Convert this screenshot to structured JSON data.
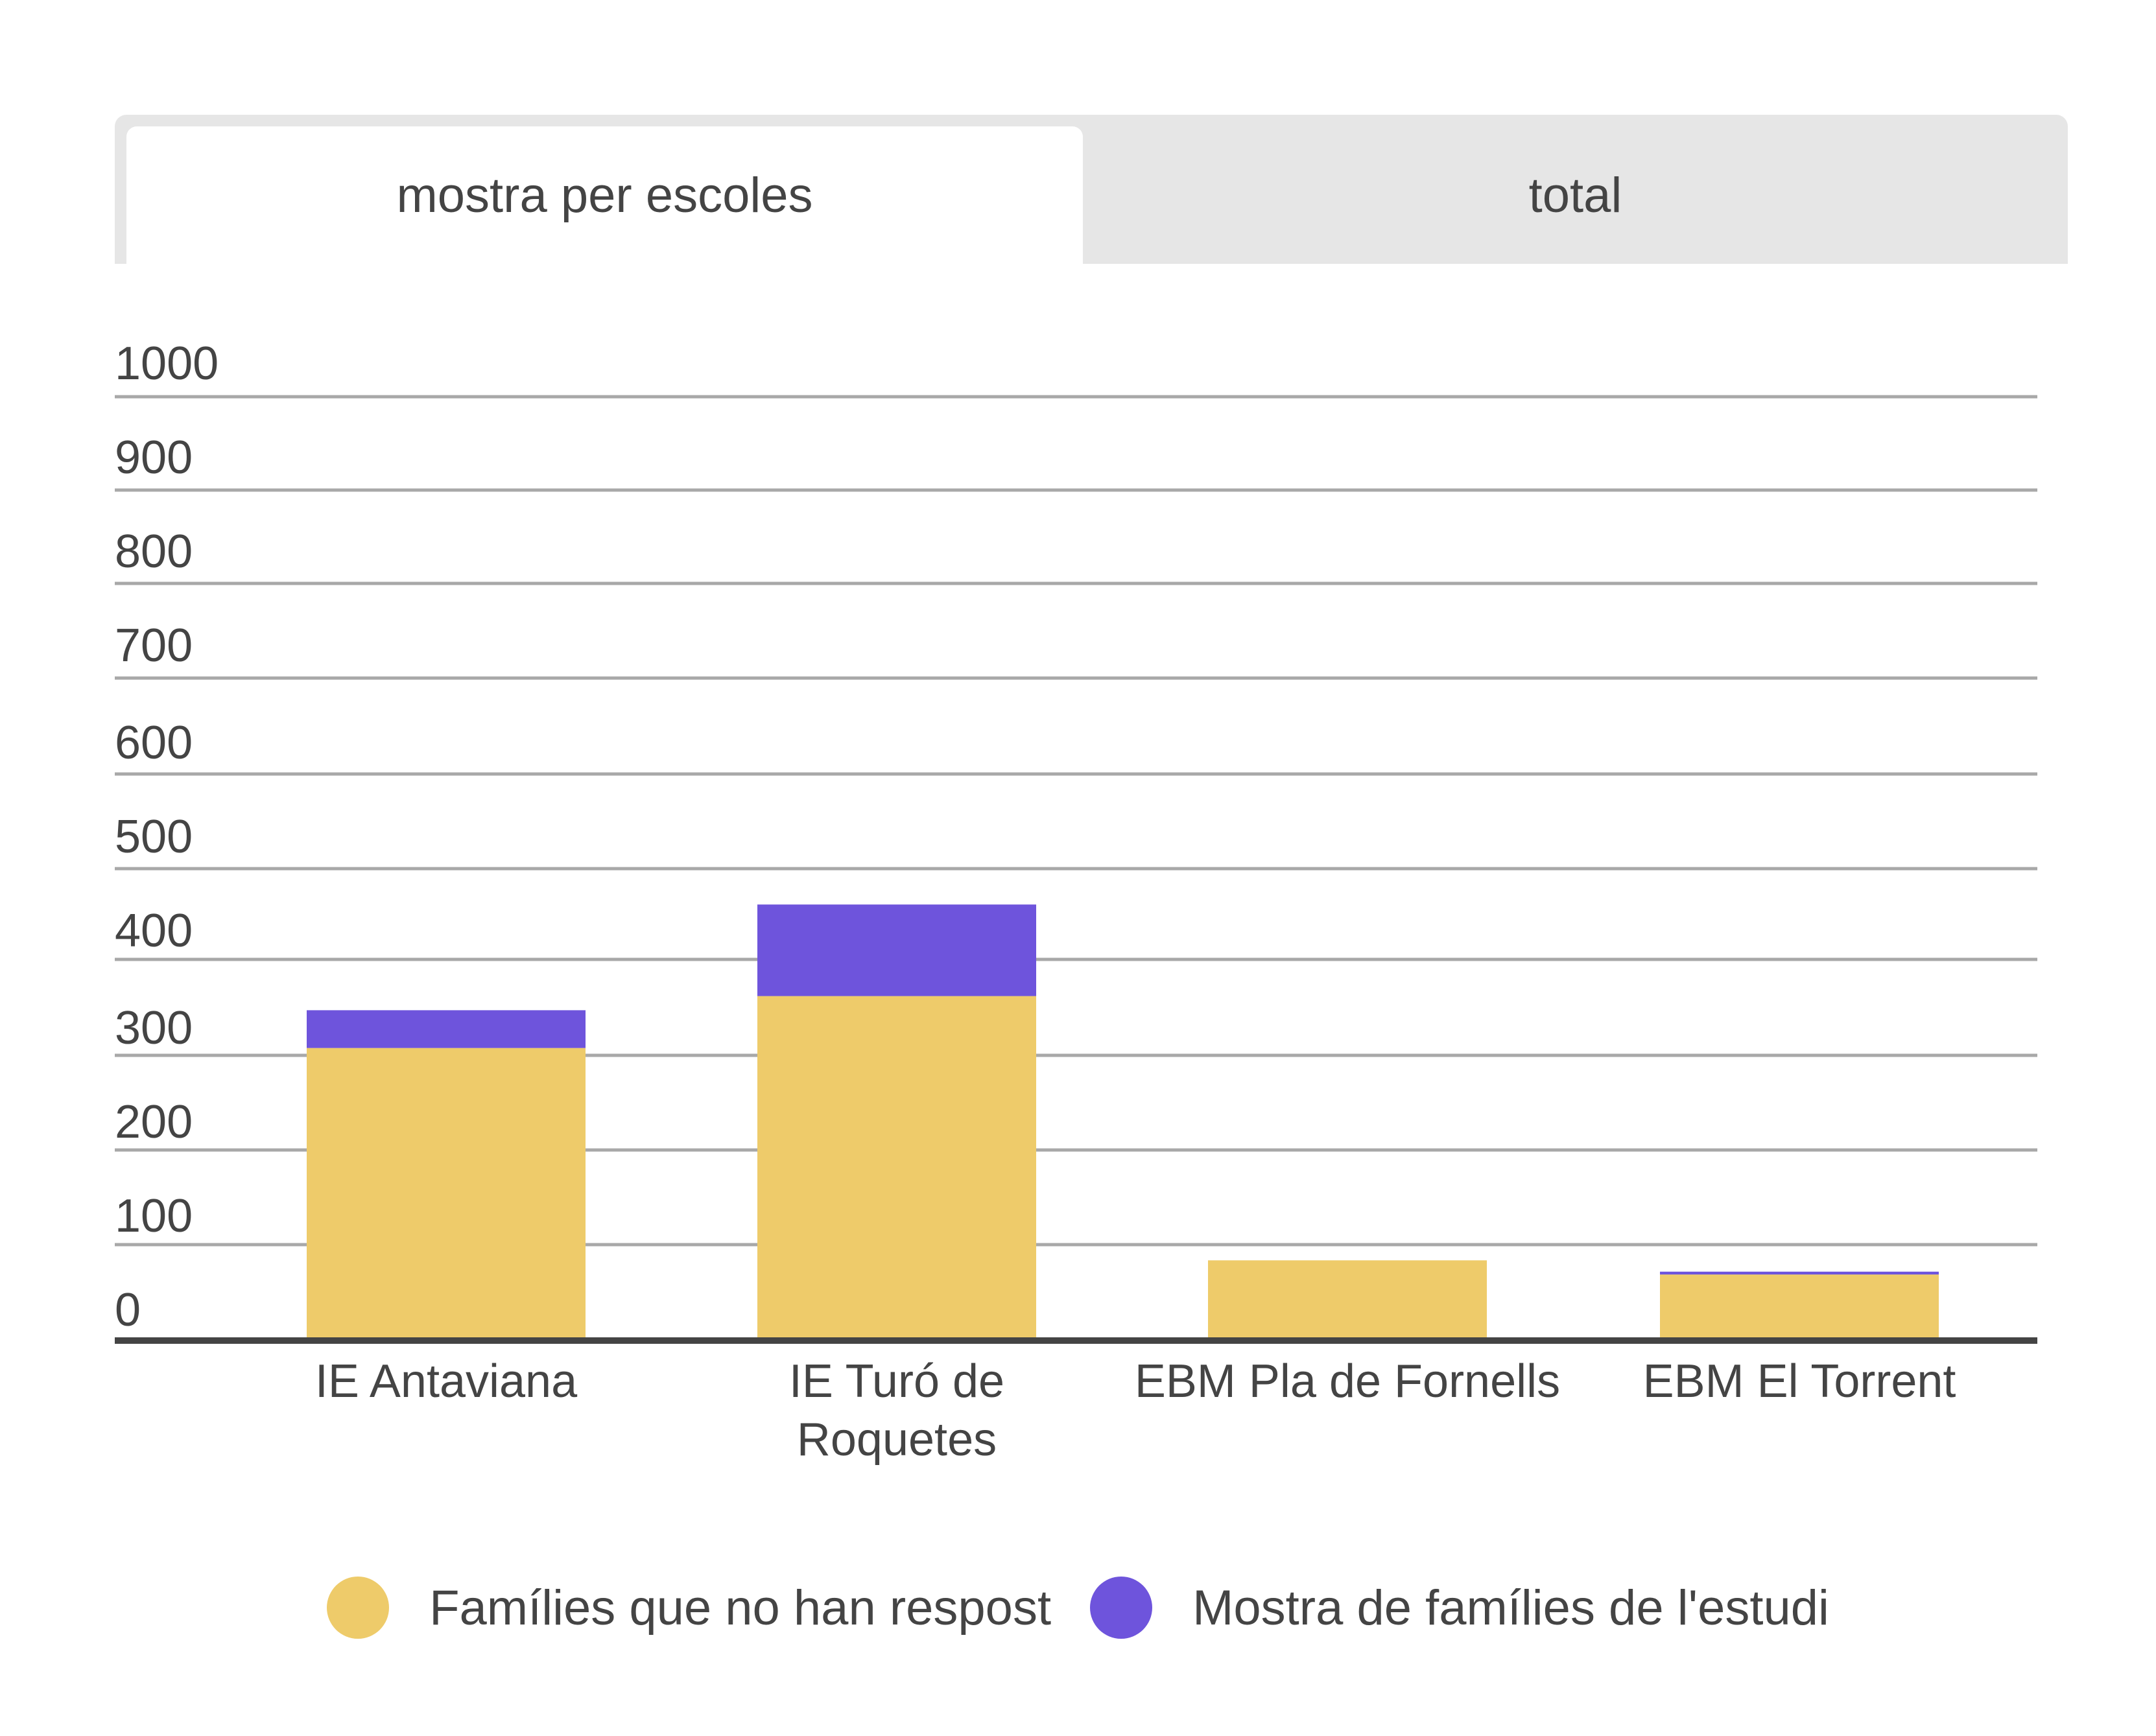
{
  "tabs": [
    {
      "label": "mostra per escoles",
      "active": true
    },
    {
      "label": "total",
      "active": false
    }
  ],
  "colors": {
    "no_response": "#eecb6a",
    "sample": "#6e54dc",
    "gridline": "#a8a8a8",
    "axis": "#444444",
    "text": "#444444",
    "tab_bar": "#e6e6e6"
  },
  "chart_data": {
    "type": "bar",
    "stacked": true,
    "categories": [
      [
        "IE Antaviana"
      ],
      [
        "IE Turó de",
        "Roquetes"
      ],
      [
        "EBM Pla de Fornells"
      ],
      [
        "EBM El Torrent"
      ]
    ],
    "series": [
      {
        "name": "Famílies que no han respost",
        "color": "#eecb6a",
        "values": [
          310,
          365,
          85,
          70
        ]
      },
      {
        "name": "Mostra de famílies de l'estudi",
        "color": "#6e54dc",
        "values": [
          40,
          97,
          0,
          3
        ]
      }
    ],
    "y_tick_labels": [
      "0",
      "100",
      "200",
      "300",
      "400",
      "500",
      "600",
      "700",
      "800",
      "900",
      "1000"
    ],
    "ylim": [
      0,
      1000
    ],
    "grid": true,
    "legend_position": "bottom"
  }
}
